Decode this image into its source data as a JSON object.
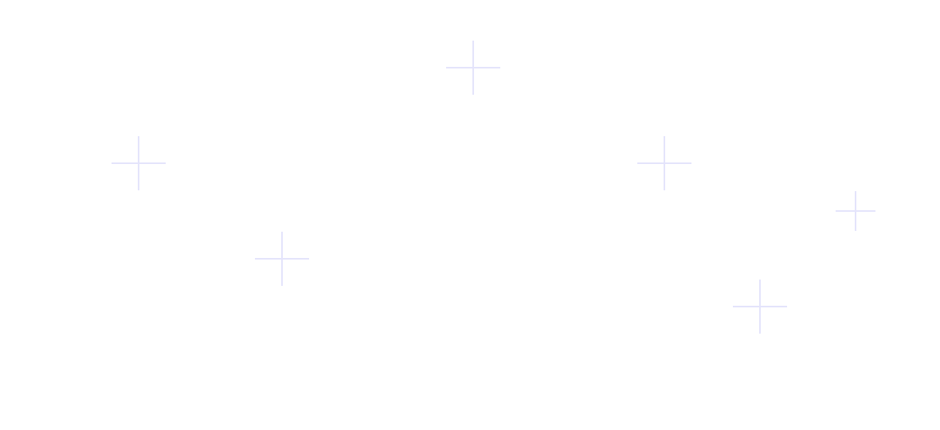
{
  "background": {
    "color": "#ffffff"
  },
  "decorations": {
    "icon": "plus-icon",
    "color": "#e4e4fb",
    "count": 6
  }
}
